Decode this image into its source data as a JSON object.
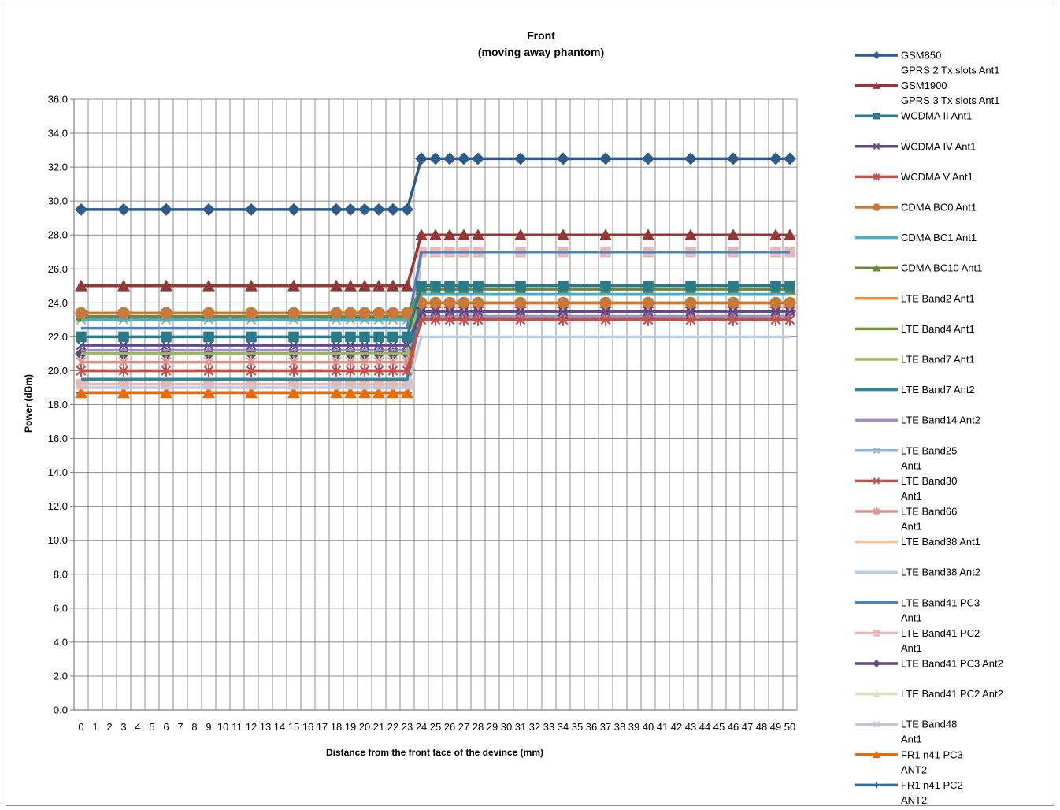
{
  "chart_data": {
    "type": "line",
    "title": [
      "Front",
      "(moving away phantom)"
    ],
    "xlabel": "Distance from the front face of the devince (mm)",
    "ylabel": "Power (dBm)",
    "ylim": [
      0,
      36
    ],
    "ytick_step": 2,
    "x_categories": [
      "0",
      "1",
      "2",
      "3",
      "4",
      "5",
      "6",
      "7",
      "8",
      "9",
      "10",
      "11",
      "12",
      "13",
      "14",
      "15",
      "16",
      "17",
      "18",
      "19",
      "20",
      "21",
      "22",
      "23",
      "24",
      "25",
      "26",
      "27",
      "28",
      "29",
      "30",
      "31",
      "32",
      "33",
      "34",
      "35",
      "36",
      "37",
      "38",
      "39",
      "40",
      "41",
      "42",
      "43",
      "44",
      "45",
      "46",
      "47",
      "48",
      "49",
      "50"
    ],
    "x_points": [
      0,
      3,
      6,
      9,
      12,
      15,
      18,
      19,
      20,
      21,
      22,
      23,
      24,
      25,
      26,
      27,
      28,
      31,
      34,
      37,
      40,
      43,
      46,
      49,
      50
    ],
    "grid": true,
    "legend_position": "right",
    "series": [
      {
        "name": "GSM850 GPRS 2 Tx slots Ant1",
        "legend_lines": [
          "GSM850",
          "GPRS 2 Tx slots Ant1"
        ],
        "color": "#2E5C8A",
        "marker": "diamond",
        "near": 29.5,
        "far": 32.5
      },
      {
        "name": "GSM1900 GPRS 3 Tx slots Ant1",
        "legend_lines": [
          "GSM1900",
          "GPRS 3 Tx slots Ant1"
        ],
        "color": "#953735",
        "marker": "triangle",
        "near": 25.0,
        "far": 28.0
      },
      {
        "name": "WCDMA II Ant1",
        "legend_lines": [
          "WCDMA II Ant1"
        ],
        "color": "#2B7A8A",
        "marker": "square",
        "near": 22.0,
        "far": 25.0
      },
      {
        "name": "WCDMA IV Ant1",
        "legend_lines": [
          "WCDMA IV Ant1"
        ],
        "color": "#5E4A8A",
        "marker": "x",
        "near": 21.5,
        "far": 23.5
      },
      {
        "name": "WCDMA V Ant1",
        "legend_lines": [
          "WCDMA V Ant1"
        ],
        "color": "#C0504D",
        "marker": "star",
        "near": 20.0,
        "far": 23.0
      },
      {
        "name": "CDMA BC0 Ant1",
        "legend_lines": [
          "CDMA BC0 Ant1"
        ],
        "color": "#C77A3A",
        "marker": "circle",
        "near": 23.4,
        "far": 24.0
      },
      {
        "name": "CDMA BC1 Ant1",
        "legend_lines": [
          "CDMA BC1 Ant1"
        ],
        "color": "#4BACC6",
        "marker": "none",
        "near": 23.0,
        "far": 24.5
      },
      {
        "name": "CDMA BC10 Ant1",
        "legend_lines": [
          "CDMA BC10 Ant1"
        ],
        "color": "#6A8A3A",
        "marker": "triangle",
        "near": 23.2,
        "far": 24.8
      },
      {
        "name": "LTE Band2 Ant1",
        "legend_lines": [
          "LTE Band2 Ant1"
        ],
        "color": "#F08C3C",
        "marker": "none",
        "near": 23.0,
        "far": 24.0
      },
      {
        "name": "LTE Band4 Ant1",
        "legend_lines": [
          "LTE Band4 Ant1"
        ],
        "color": "#77933C",
        "marker": "none",
        "near": 23.0,
        "far": 24.0
      },
      {
        "name": "LTE Band7 Ant1",
        "legend_lines": [
          "LTE Band7 Ant1"
        ],
        "color": "#9BBB59",
        "marker": "none",
        "near": 21.0,
        "far": 25.0
      },
      {
        "name": "LTE Band7 Ant2",
        "legend_lines": [
          "LTE Band7 Ant2"
        ],
        "color": "#31859C",
        "marker": "none",
        "near": 19.5,
        "far": 24.5
      },
      {
        "name": "LTE Band14 Ant2",
        "legend_lines": [
          "LTE Band14 Ant2"
        ],
        "color": "#A08FC0",
        "marker": "none",
        "near": 21.2,
        "far": 23.2
      },
      {
        "name": "LTE Band25 Ant1",
        "legend_lines": [
          "LTE Band25",
          "Ant1"
        ],
        "color": "#95B3D7",
        "marker": "x",
        "near": 23.0,
        "far": 24.0
      },
      {
        "name": "LTE Band30 Ant1",
        "legend_lines": [
          "LTE Band30",
          "Ant1"
        ],
        "color": "#C0504D",
        "marker": "x",
        "near": 20.0,
        "far": 23.0
      },
      {
        "name": "LTE Band66 Ant1",
        "legend_lines": [
          "LTE Band66",
          "Ant1"
        ],
        "color": "#D99694",
        "marker": "star",
        "near": 20.5,
        "far": 23.5
      },
      {
        "name": "LTE Band38 Ant1",
        "legend_lines": [
          "LTE Band38 Ant1"
        ],
        "color": "#FAC090",
        "marker": "none",
        "near": 20.5,
        "far": 24.0
      },
      {
        "name": "LTE Band38 Ant2",
        "legend_lines": [
          "LTE Band38 Ant2"
        ],
        "color": "#B9CDE5",
        "marker": "none",
        "near": 19.0,
        "far": 22.0
      },
      {
        "name": "LTE Band41 PC3 Ant1",
        "legend_lines": [
          "LTE Band41 PC3",
          "Ant1"
        ],
        "color": "#4F81BD",
        "marker": "none",
        "near": 22.5,
        "far": 27.0
      },
      {
        "name": "LTE Band41 PC2 Ant1",
        "legend_lines": [
          "LTE Band41 PC2",
          "Ant1"
        ],
        "color": "#E6B9B8",
        "marker": "square",
        "near": 19.2,
        "far": 27.0
      },
      {
        "name": "LTE Band41 PC3 Ant2",
        "legend_lines": [
          "LTE Band41 PC3 Ant2"
        ],
        "color": "#604A7B",
        "marker": "diamond",
        "near": 21.0,
        "far": 23.5
      },
      {
        "name": "LTE Band41 PC2 Ant2",
        "legend_lines": [
          "LTE Band41 PC2 Ant2"
        ],
        "color": "#D7E4BD",
        "marker": "triangle",
        "near": 21.0,
        "far": 25.0
      },
      {
        "name": "LTE Band48 Ant1",
        "legend_lines": [
          "LTE Band48",
          "Ant1"
        ],
        "color": "#CCC1DA",
        "marker": "x",
        "near": 22.0,
        "far": 23.0
      },
      {
        "name": "FR1 n41 PC3 ANT2",
        "legend_lines": [
          "FR1 n41 PC3",
          "ANT2"
        ],
        "color": "#E46C0A",
        "marker": "triangle",
        "near": 18.7,
        "far": 24.0
      },
      {
        "name": "FR1 n41 PC2 ANT2",
        "legend_lines": [
          "FR1 n41 PC2",
          "ANT2"
        ],
        "color": "#2F6AB0",
        "marker": "plus",
        "near": 18.7,
        "far": 27.0
      }
    ]
  }
}
